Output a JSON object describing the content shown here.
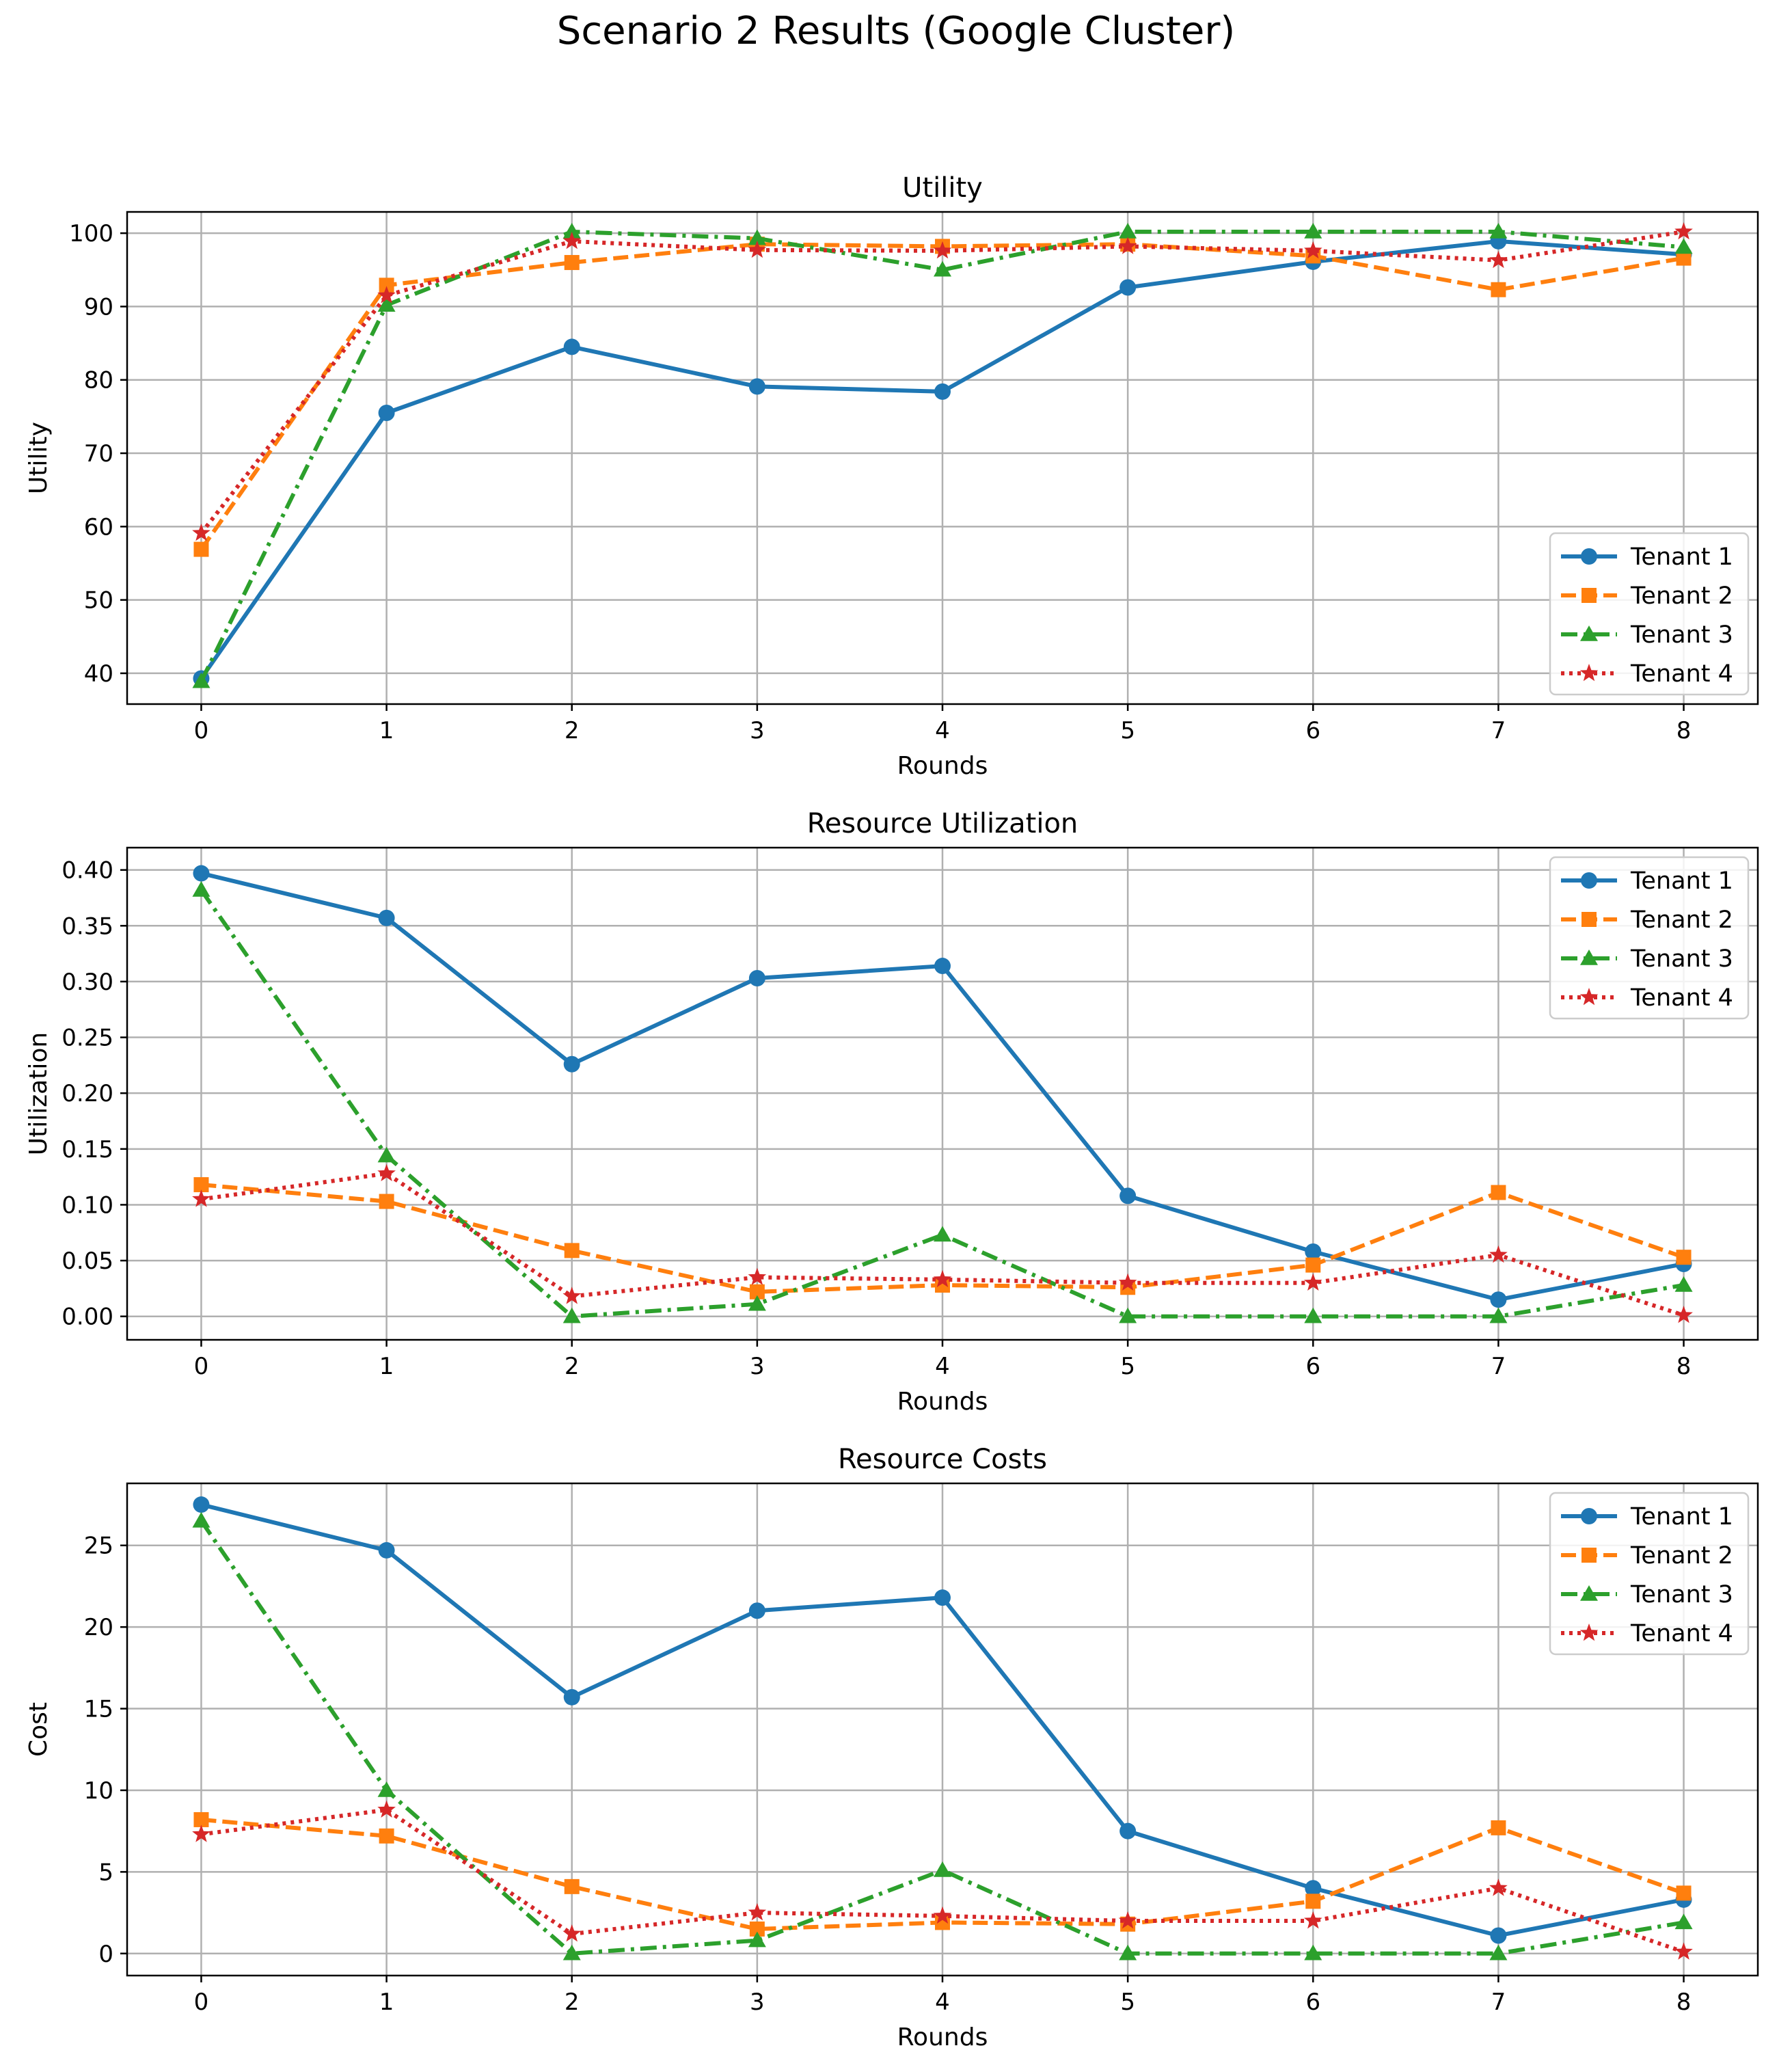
{
  "figure_title": "Scenario 2 Results (Google Cluster)",
  "colors": {
    "tenant1": "#1f77b4",
    "tenant2": "#ff7f0e",
    "tenant3": "#2ca02c",
    "tenant4": "#d62728"
  },
  "chart_data": [
    {
      "type": "line",
      "title": "Utility",
      "xlabel": "Rounds",
      "ylabel": "Utility",
      "x": [
        0,
        1,
        2,
        3,
        4,
        5,
        6,
        7,
        8
      ],
      "xlim": [
        -0.4,
        8.4
      ],
      "ylim": [
        35.8,
        102.9
      ],
      "yticks": [
        40,
        50,
        60,
        70,
        80,
        90,
        100
      ],
      "ytick_labels": [
        "40",
        "50",
        "60",
        "70",
        "80",
        "90",
        "100"
      ],
      "grid": true,
      "legend_position": "lower-right",
      "series": [
        {
          "name": "Tenant 1",
          "marker": "circle",
          "linestyle": "solid",
          "color": "#1f77b4",
          "values": [
            39.3,
            75.5,
            84.5,
            79.1,
            78.4,
            92.6,
            96.1,
            98.9,
            97.1
          ]
        },
        {
          "name": "Tenant 2",
          "marker": "square",
          "linestyle": "dashed",
          "color": "#ff7f0e",
          "values": [
            56.9,
            92.9,
            96.0,
            98.5,
            98.2,
            98.5,
            96.9,
            92.3,
            96.6
          ]
        },
        {
          "name": "Tenant 3",
          "marker": "triangle",
          "linestyle": "dashdot",
          "color": "#2ca02c",
          "values": [
            38.9,
            90.2,
            100.2,
            99.3,
            95.0,
            100.2,
            100.2,
            100.2,
            98.1
          ]
        },
        {
          "name": "Tenant 4",
          "marker": "star",
          "linestyle": "dotted",
          "color": "#d62728",
          "values": [
            59.1,
            91.5,
            98.9,
            97.7,
            97.6,
            98.2,
            97.6,
            96.3,
            100.2
          ]
        }
      ]
    },
    {
      "type": "line",
      "title": "Resource Utilization",
      "xlabel": "Rounds",
      "ylabel": "Utilization",
      "x": [
        0,
        1,
        2,
        3,
        4,
        5,
        6,
        7,
        8
      ],
      "xlim": [
        -0.4,
        8.4
      ],
      "ylim": [
        -0.021,
        0.42
      ],
      "yticks": [
        0.0,
        0.05,
        0.1,
        0.15,
        0.2,
        0.25,
        0.3,
        0.35,
        0.4
      ],
      "ytick_labels": [
        "0.00",
        "0.05",
        "0.10",
        "0.15",
        "0.20",
        "0.25",
        "0.30",
        "0.35",
        "0.40"
      ],
      "grid": true,
      "legend_position": "upper-right",
      "series": [
        {
          "name": "Tenant 1",
          "marker": "circle",
          "linestyle": "solid",
          "color": "#1f77b4",
          "values": [
            0.397,
            0.357,
            0.226,
            0.303,
            0.314,
            0.108,
            0.058,
            0.015,
            0.047
          ]
        },
        {
          "name": "Tenant 2",
          "marker": "square",
          "linestyle": "dashed",
          "color": "#ff7f0e",
          "values": [
            0.118,
            0.103,
            0.059,
            0.022,
            0.028,
            0.026,
            0.046,
            0.111,
            0.053
          ]
        },
        {
          "name": "Tenant 3",
          "marker": "triangle",
          "linestyle": "dashdot",
          "color": "#2ca02c",
          "values": [
            0.382,
            0.144,
            0.0,
            0.011,
            0.073,
            0.0,
            0.0,
            0.0,
            0.028
          ]
        },
        {
          "name": "Tenant 4",
          "marker": "star",
          "linestyle": "dotted",
          "color": "#d62728",
          "values": [
            0.105,
            0.128,
            0.018,
            0.035,
            0.033,
            0.03,
            0.03,
            0.055,
            0.001
          ]
        }
      ]
    },
    {
      "type": "line",
      "title": "Resource Costs",
      "xlabel": "Rounds",
      "ylabel": "Cost",
      "x": [
        0,
        1,
        2,
        3,
        4,
        5,
        6,
        7,
        8
      ],
      "xlim": [
        -0.4,
        8.4
      ],
      "ylim": [
        -1.35,
        28.8
      ],
      "yticks": [
        0,
        5,
        10,
        15,
        20,
        25
      ],
      "ytick_labels": [
        "0",
        "5",
        "10",
        "15",
        "20",
        "25"
      ],
      "grid": true,
      "legend_position": "upper-right",
      "series": [
        {
          "name": "Tenant 1",
          "marker": "circle",
          "linestyle": "solid",
          "color": "#1f77b4",
          "values": [
            27.5,
            24.7,
            15.7,
            21.0,
            21.8,
            7.5,
            4.0,
            1.1,
            3.3
          ]
        },
        {
          "name": "Tenant 2",
          "marker": "square",
          "linestyle": "dashed",
          "color": "#ff7f0e",
          "values": [
            8.2,
            7.2,
            4.1,
            1.5,
            1.9,
            1.8,
            3.2,
            7.7,
            3.7
          ]
        },
        {
          "name": "Tenant 3",
          "marker": "triangle",
          "linestyle": "dashdot",
          "color": "#2ca02c",
          "values": [
            26.5,
            10.0,
            0.0,
            0.8,
            5.1,
            0.0,
            0.0,
            0.0,
            1.9
          ]
        },
        {
          "name": "Tenant 4",
          "marker": "star",
          "linestyle": "dotted",
          "color": "#d62728",
          "values": [
            7.3,
            8.8,
            1.2,
            2.5,
            2.3,
            2.0,
            2.0,
            4.0,
            0.1
          ]
        }
      ]
    }
  ]
}
